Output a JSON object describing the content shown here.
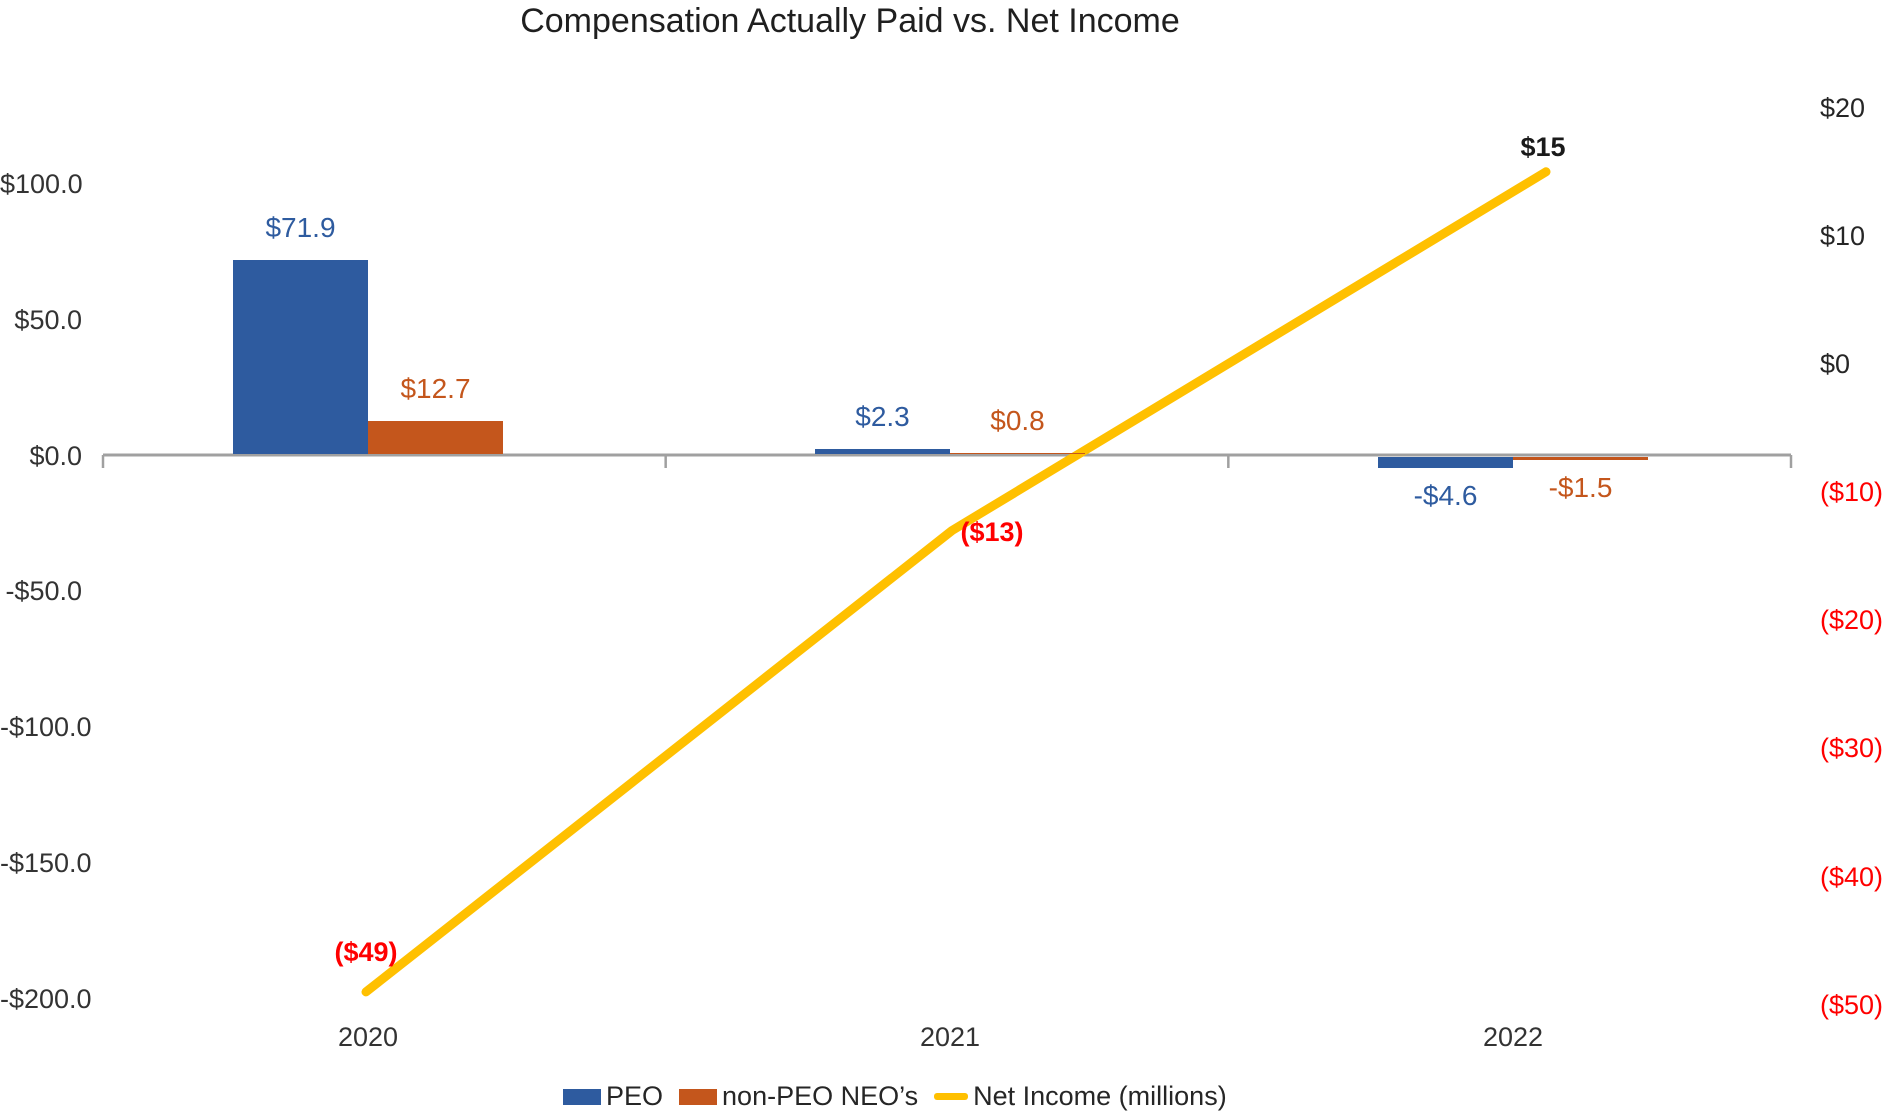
{
  "title": "Compensation Actually Paid vs. Net Income",
  "chart_data": {
    "type": "combo",
    "title": "Compensation Actually Paid vs. Net Income",
    "categories": [
      "2020",
      "2021",
      "2022"
    ],
    "series": [
      {
        "name": "PEO",
        "type": "bar",
        "axis": "left",
        "color": "#2E5B9F",
        "values": [
          71.9,
          2.3,
          -4.6
        ],
        "labels": [
          "$71.9",
          "$2.3",
          "-$4.6"
        ]
      },
      {
        "name": "non-PEO NEO’s",
        "type": "bar",
        "axis": "left",
        "color": "#C4561C",
        "values": [
          12.7,
          0.8,
          -1.5
        ],
        "labels": [
          "$12.7",
          "$0.8",
          "-$1.5"
        ]
      },
      {
        "name": "Net Income (millions)",
        "type": "line",
        "axis": "right",
        "color": "#FFC000",
        "values": [
          -49,
          -13,
          15
        ],
        "labels": [
          "($49)",
          "($13)",
          "$15"
        ],
        "label_colors": [
          "#FF0000",
          "#FF0000",
          "#1A1A1A"
        ]
      }
    ],
    "left_axis": {
      "tick_labels": [
        "$100.0",
        "$50.0",
        "$0.0",
        "-$50.0",
        "-$100.0",
        "-$150.0",
        "-$200.0"
      ],
      "tick_values": [
        100,
        50,
        0,
        -50,
        -100,
        -150,
        -200
      ],
      "range": [
        -200,
        100
      ]
    },
    "right_axis": {
      "tick_labels": [
        "$20",
        "$10",
        "$0",
        "($10)",
        "($20)",
        "($30)",
        "($40)",
        "($50)"
      ],
      "tick_values": [
        20,
        10,
        0,
        -10,
        -20,
        -30,
        -40,
        -50
      ],
      "range": [
        -50,
        20
      ],
      "negative_color": "#FF0000"
    },
    "grid": false,
    "legend_position": "bottom",
    "axis_line_color": "#A0A0A0"
  }
}
